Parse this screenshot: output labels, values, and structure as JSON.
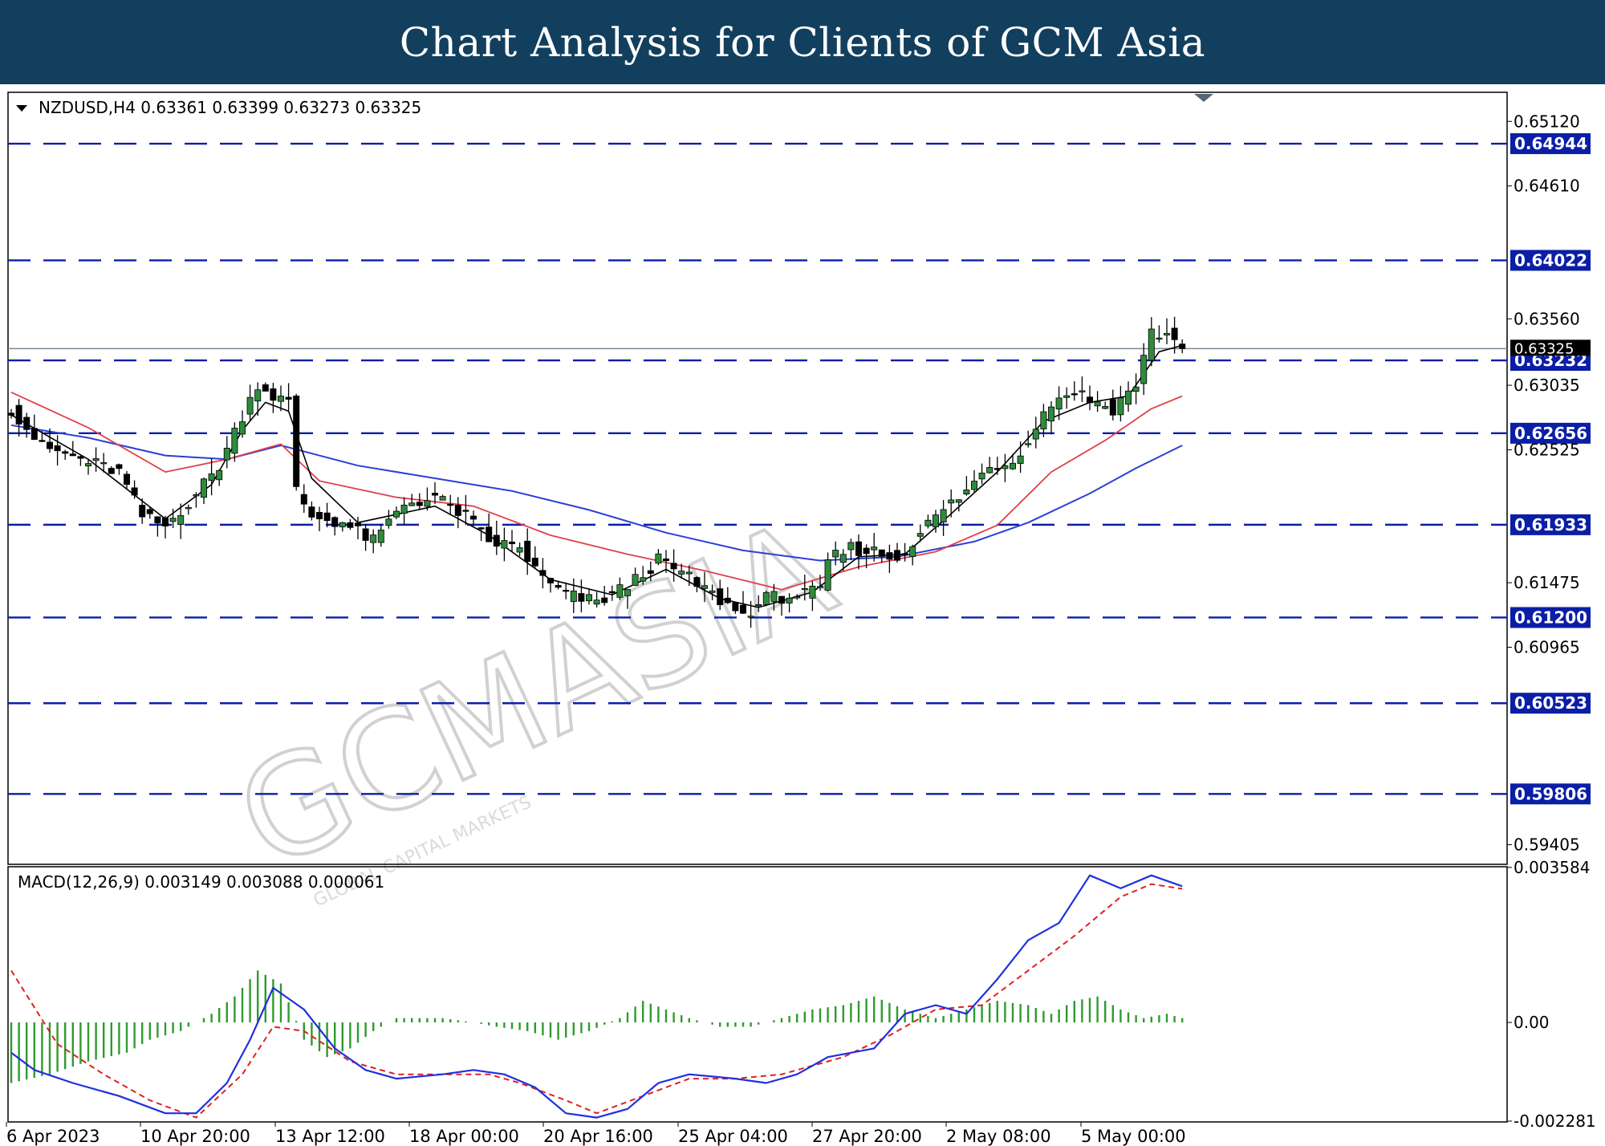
{
  "header": {
    "title": "Chart Analysis for Clients of GCM Asia"
  },
  "watermark": {
    "brand": "GCMASIA",
    "tagline": "GLOBAL CAPITAL MARKETS"
  },
  "price_panel": {
    "info": "NZDUSD,H4  0.63361 0.63399 0.63273 0.63325",
    "current_price": 0.63325,
    "current_price_label": "0.63325"
  },
  "macd_panel": {
    "info": "MACD(12,26,9) 0.003149 0.003088 0.000061"
  },
  "colors": {
    "header_bg": "#123f5e",
    "level_line": "#0b1ea6",
    "bull_candle": "#2e8b3c",
    "bear_candle": "#000000",
    "ma_fast": "#000000",
    "ma_mid": "#e0404a",
    "ma_slow": "#2a3fd6",
    "macd_line": "#1f2fe0",
    "signal_line": "#e02020",
    "histogram": "#2e9b2e"
  },
  "chart_data": [
    {
      "type": "candlestick",
      "symbol": "NZDUSD",
      "timeframe": "H4",
      "ohlc_last": [
        0.63361,
        0.63399,
        0.63273,
        0.63325
      ],
      "ylim": [
        0.5925,
        0.6535
      ],
      "y_ticks": [
        {
          "value": 0.6512,
          "label": "0.65120"
        },
        {
          "value": 0.6461,
          "label": "0.64610"
        },
        {
          "value": 0.6356,
          "label": "0.63560"
        },
        {
          "value": 0.63035,
          "label": "0.63035"
        },
        {
          "value": 0.62525,
          "label": "0.62525"
        },
        {
          "value": 0.61475,
          "label": "0.61475"
        },
        {
          "value": 0.60965,
          "label": "0.60965"
        },
        {
          "value": 0.59405,
          "label": "0.59405"
        }
      ],
      "levels": [
        {
          "value": 0.64944,
          "label": "0.64944"
        },
        {
          "value": 0.64022,
          "label": "0.64022"
        },
        {
          "value": 0.63232,
          "label": "0.63232"
        },
        {
          "value": 0.62656,
          "label": "0.62656"
        },
        {
          "value": 0.61933,
          "label": "0.61933"
        },
        {
          "value": 0.612,
          "label": "0.61200"
        },
        {
          "value": 0.60523,
          "label": "0.60523"
        },
        {
          "value": 0.59806,
          "label": "0.59806"
        }
      ],
      "x_labels": [
        "6 Apr 2023",
        "10 Apr 20:00",
        "13 Apr 12:00",
        "18 Apr 00:00",
        "20 Apr 16:00",
        "25 Apr 04:00",
        "27 Apr 20:00",
        "2 May 08:00",
        "5 May 00:00"
      ],
      "close_path": [
        [
          0,
          0.6285
        ],
        [
          4,
          0.6255
        ],
        [
          9,
          0.6245
        ],
        [
          14,
          0.6235
        ],
        [
          17,
          0.62
        ],
        [
          20,
          0.6192
        ],
        [
          24,
          0.6218
        ],
        [
          27,
          0.624
        ],
        [
          30,
          0.628
        ],
        [
          32,
          0.6305
        ],
        [
          34,
          0.6295
        ],
        [
          36,
          0.629
        ],
        [
          37,
          0.622
        ],
        [
          39,
          0.62
        ],
        [
          43,
          0.6195
        ],
        [
          47,
          0.618
        ],
        [
          51,
          0.621
        ],
        [
          55,
          0.6215
        ],
        [
          59,
          0.62
        ],
        [
          62,
          0.618
        ],
        [
          66,
          0.6175
        ],
        [
          69,
          0.615
        ],
        [
          72,
          0.6138
        ],
        [
          76,
          0.6132
        ],
        [
          80,
          0.6145
        ],
        [
          84,
          0.6165
        ],
        [
          87,
          0.6155
        ],
        [
          91,
          0.6138
        ],
        [
          93,
          0.613
        ],
        [
          95,
          0.6122
        ],
        [
          98,
          0.6135
        ],
        [
          102,
          0.6138
        ],
        [
          105,
          0.614
        ],
        [
          106,
          0.6165
        ],
        [
          109,
          0.6175
        ],
        [
          112,
          0.6172
        ],
        [
          115,
          0.6166
        ],
        [
          118,
          0.6188
        ],
        [
          121,
          0.6205
        ],
        [
          124,
          0.622
        ],
        [
          127,
          0.624
        ],
        [
          130,
          0.6243
        ],
        [
          132,
          0.6262
        ],
        [
          135,
          0.629
        ],
        [
          138,
          0.63
        ],
        [
          140,
          0.6292
        ],
        [
          143,
          0.6285
        ],
        [
          146,
          0.6305
        ],
        [
          148,
          0.6345
        ],
        [
          150,
          0.6344
        ],
        [
          152,
          0.6332
        ]
      ],
      "ma_fast": [
        [
          0,
          0.628
        ],
        [
          10,
          0.6245
        ],
        [
          20,
          0.6198
        ],
        [
          26,
          0.6225
        ],
        [
          30,
          0.6268
        ],
        [
          33,
          0.629
        ],
        [
          36,
          0.6283
        ],
        [
          39,
          0.623
        ],
        [
          45,
          0.6195
        ],
        [
          55,
          0.6208
        ],
        [
          62,
          0.6185
        ],
        [
          70,
          0.615
        ],
        [
          78,
          0.6138
        ],
        [
          85,
          0.6158
        ],
        [
          92,
          0.6135
        ],
        [
          97,
          0.6128
        ],
        [
          104,
          0.614
        ],
        [
          110,
          0.6168
        ],
        [
          116,
          0.617
        ],
        [
          122,
          0.6202
        ],
        [
          128,
          0.6235
        ],
        [
          134,
          0.6275
        ],
        [
          140,
          0.629
        ],
        [
          145,
          0.6295
        ],
        [
          149,
          0.633
        ],
        [
          152,
          0.6335
        ]
      ],
      "ma_mid": [
        [
          0,
          0.6298
        ],
        [
          10,
          0.627
        ],
        [
          20,
          0.6235
        ],
        [
          28,
          0.6245
        ],
        [
          35,
          0.6257
        ],
        [
          40,
          0.6228
        ],
        [
          50,
          0.6215
        ],
        [
          60,
          0.6208
        ],
        [
          70,
          0.6185
        ],
        [
          80,
          0.617
        ],
        [
          90,
          0.6157
        ],
        [
          100,
          0.6142
        ],
        [
          110,
          0.616
        ],
        [
          120,
          0.6172
        ],
        [
          128,
          0.6193
        ],
        [
          135,
          0.6235
        ],
        [
          142,
          0.626
        ],
        [
          148,
          0.6285
        ],
        [
          152,
          0.6295
        ]
      ],
      "ma_slow": [
        [
          0,
          0.6272
        ],
        [
          10,
          0.6262
        ],
        [
          20,
          0.6248
        ],
        [
          28,
          0.6245
        ],
        [
          35,
          0.6256
        ],
        [
          45,
          0.624
        ],
        [
          55,
          0.623
        ],
        [
          65,
          0.622
        ],
        [
          75,
          0.6205
        ],
        [
          85,
          0.6187
        ],
        [
          95,
          0.6173
        ],
        [
          105,
          0.6165
        ],
        [
          115,
          0.6168
        ],
        [
          125,
          0.618
        ],
        [
          132,
          0.6195
        ],
        [
          140,
          0.6218
        ],
        [
          146,
          0.6238
        ],
        [
          152,
          0.6256
        ]
      ]
    },
    {
      "type": "macd",
      "params": "12,26,9",
      "values_last": [
        0.003149,
        0.003088,
        6.1e-05
      ],
      "ylim": [
        -0.0023,
        0.0036
      ],
      "y_ticks": [
        {
          "value": 0.003584,
          "label": "0.003584"
        },
        {
          "value": 0.0,
          "label": "0.00"
        },
        {
          "value": -0.002281,
          "label": "-0.002281"
        }
      ],
      "macd_line": [
        [
          0,
          -0.0007
        ],
        [
          3,
          -0.0011
        ],
        [
          8,
          -0.0014
        ],
        [
          14,
          -0.0017
        ],
        [
          20,
          -0.0021
        ],
        [
          24,
          -0.0021
        ],
        [
          28,
          -0.0014
        ],
        [
          31,
          -0.0004
        ],
        [
          34,
          0.0008
        ],
        [
          38,
          0.0003
        ],
        [
          42,
          -0.0006
        ],
        [
          46,
          -0.0011
        ],
        [
          50,
          -0.0013
        ],
        [
          56,
          -0.0012
        ],
        [
          60,
          -0.0011
        ],
        [
          64,
          -0.0012
        ],
        [
          68,
          -0.0015
        ],
        [
          72,
          -0.0021
        ],
        [
          76,
          -0.0022
        ],
        [
          80,
          -0.002
        ],
        [
          84,
          -0.0014
        ],
        [
          88,
          -0.0012
        ],
        [
          94,
          -0.0013
        ],
        [
          98,
          -0.0014
        ],
        [
          102,
          -0.0012
        ],
        [
          106,
          -0.0008
        ],
        [
          112,
          -0.0006
        ],
        [
          116,
          0.0002
        ],
        [
          120,
          0.0004
        ],
        [
          124,
          0.0002
        ],
        [
          128,
          0.001
        ],
        [
          132,
          0.0019
        ],
        [
          136,
          0.0023
        ],
        [
          140,
          0.0034
        ],
        [
          144,
          0.0031
        ],
        [
          148,
          0.0034
        ],
        [
          152,
          0.00315
        ]
      ],
      "signal_line": [
        [
          0,
          0.0012
        ],
        [
          6,
          -0.0005
        ],
        [
          12,
          -0.0012
        ],
        [
          18,
          -0.0018
        ],
        [
          24,
          -0.0022
        ],
        [
          30,
          -0.0012
        ],
        [
          34,
          -0.0001
        ],
        [
          38,
          -0.0002
        ],
        [
          44,
          -0.0009
        ],
        [
          50,
          -0.0012
        ],
        [
          56,
          -0.0012
        ],
        [
          62,
          -0.0012
        ],
        [
          66,
          -0.0014
        ],
        [
          72,
          -0.0018
        ],
        [
          76,
          -0.0021
        ],
        [
          82,
          -0.0017
        ],
        [
          88,
          -0.0013
        ],
        [
          94,
          -0.0013
        ],
        [
          100,
          -0.0012
        ],
        [
          108,
          -0.0008
        ],
        [
          114,
          -0.0003
        ],
        [
          120,
          0.0003
        ],
        [
          126,
          0.0004
        ],
        [
          132,
          0.0012
        ],
        [
          138,
          0.002
        ],
        [
          144,
          0.0029
        ],
        [
          148,
          0.0032
        ],
        [
          152,
          0.003088
        ]
      ],
      "histogram": [
        [
          0,
          -0.0014
        ],
        [
          5,
          -0.0012
        ],
        [
          10,
          -0.0009
        ],
        [
          15,
          -0.0007
        ],
        [
          18,
          -0.0004
        ],
        [
          22,
          -0.0002
        ],
        [
          26,
          0.0002
        ],
        [
          29,
          0.0006
        ],
        [
          32,
          0.0012
        ],
        [
          35,
          0.0009
        ],
        [
          38,
          -0.0004
        ],
        [
          41,
          -0.0008
        ],
        [
          44,
          -0.0006
        ],
        [
          47,
          -0.0002
        ],
        [
          50,
          0.0001
        ],
        [
          53,
          0.0001
        ],
        [
          56,
          0.0001
        ],
        [
          60,
          0.0
        ],
        [
          63,
          -0.0001
        ],
        [
          67,
          -0.0002
        ],
        [
          71,
          -0.0004
        ],
        [
          75,
          -0.0002
        ],
        [
          79,
          0.0001
        ],
        [
          82,
          0.0005
        ],
        [
          85,
          0.0003
        ],
        [
          88,
          0.0001
        ],
        [
          92,
          -0.0001
        ],
        [
          96,
          -0.0001
        ],
        [
          100,
          0.0001
        ],
        [
          104,
          0.0003
        ],
        [
          108,
          0.0004
        ],
        [
          112,
          0.0006
        ],
        [
          116,
          0.0003
        ],
        [
          120,
          0.0001
        ],
        [
          124,
          0.0003
        ],
        [
          128,
          0.0005
        ],
        [
          132,
          0.0004
        ],
        [
          135,
          0.0002
        ],
        [
          138,
          0.0005
        ],
        [
          141,
          0.0006
        ],
        [
          144,
          0.0003
        ],
        [
          147,
          0.0001
        ],
        [
          150,
          0.0002
        ],
        [
          152,
          0.0001
        ]
      ]
    }
  ]
}
